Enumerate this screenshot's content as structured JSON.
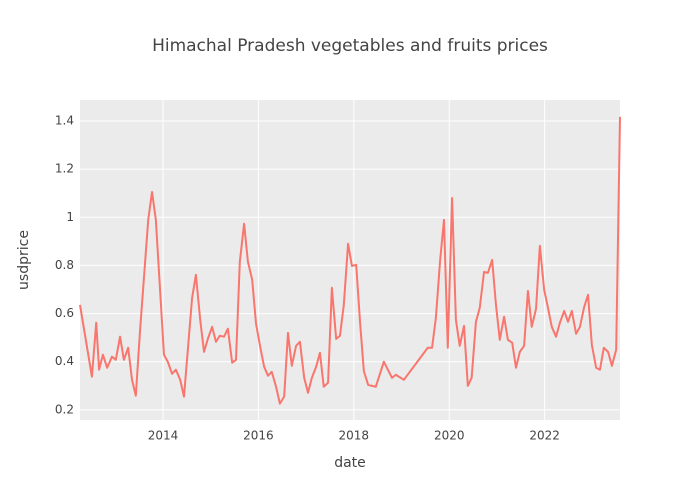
{
  "chart_data": {
    "type": "line",
    "title": "Himachal Pradesh vegetables and fruits prices",
    "x_label": "date",
    "y_label": "usdprice",
    "xlim": [
      2012.26,
      2023.58
    ],
    "xticks": [
      2014,
      2016,
      2018,
      2020,
      2022
    ],
    "ylim": [
      0.158,
      1.487
    ],
    "yticks": [
      0.2,
      0.4,
      0.6,
      0.8,
      1,
      1.2,
      1.4
    ],
    "grid": true,
    "series": [
      {
        "color": "#f8766d",
        "x": [
          2012.26,
          2012.51,
          2012.6,
          2012.66,
          2012.74,
          2012.83,
          2012.93,
          2013.01,
          2013.1,
          2013.18,
          2013.27,
          2013.35,
          2013.43,
          2013.52,
          2013.69,
          2013.77,
          2013.85,
          2014.02,
          2014.1,
          2014.19,
          2014.27,
          2014.36,
          2014.44,
          2014.61,
          2014.69,
          2014.78,
          2014.86,
          2014.94,
          2015.03,
          2015.11,
          2015.19,
          2015.28,
          2015.36,
          2015.45,
          2015.53,
          2015.61,
          2015.7,
          2015.78,
          2015.87,
          2015.95,
          2016.03,
          2016.12,
          2016.2,
          2016.28,
          2016.37,
          2016.45,
          2016.54,
          2016.62,
          2016.7,
          2016.79,
          2016.87,
          2016.96,
          2017.04,
          2017.12,
          2017.21,
          2017.29,
          2017.37,
          2017.46,
          2017.54,
          2017.63,
          2017.71,
          2017.79,
          2017.88,
          2017.96,
          2018.05,
          2018.13,
          2018.21,
          2018.3,
          2018.46,
          2018.63,
          2018.8,
          2018.88,
          2019.05,
          2019.55,
          2019.64,
          2019.72,
          2019.81,
          2019.89,
          2019.97,
          2020.06,
          2020.14,
          2020.22,
          2020.31,
          2020.39,
          2020.47,
          2020.56,
          2020.64,
          2020.73,
          2020.81,
          2020.9,
          2020.98,
          2021.06,
          2021.15,
          2021.23,
          2021.32,
          2021.4,
          2021.48,
          2021.57,
          2021.65,
          2021.73,
          2021.82,
          2021.9,
          2021.99,
          2022.07,
          2022.15,
          2022.24,
          2022.32,
          2022.41,
          2022.49,
          2022.57,
          2022.66,
          2022.74,
          2022.83,
          2022.91,
          2022.99,
          2023.08,
          2023.16,
          2023.24,
          2023.33,
          2023.41,
          2023.5,
          2023.58
        ],
        "values": [
          0.636,
          0.338,
          0.562,
          0.367,
          0.429,
          0.375,
          0.421,
          0.408,
          0.504,
          0.408,
          0.458,
          0.325,
          0.259,
          0.533,
          0.989,
          1.105,
          0.989,
          0.429,
          0.4,
          0.35,
          0.367,
          0.325,
          0.255,
          0.665,
          0.761,
          0.574,
          0.441,
          0.495,
          0.545,
          0.483,
          0.508,
          0.504,
          0.537,
          0.396,
          0.408,
          0.815,
          0.973,
          0.815,
          0.74,
          0.558,
          0.47,
          0.379,
          0.342,
          0.358,
          0.296,
          0.226,
          0.255,
          0.52,
          0.383,
          0.466,
          0.483,
          0.333,
          0.271,
          0.333,
          0.379,
          0.437,
          0.296,
          0.313,
          0.707,
          0.495,
          0.508,
          0.636,
          0.89,
          0.798,
          0.802,
          0.566,
          0.362,
          0.304,
          0.296,
          0.4,
          0.333,
          0.346,
          0.325,
          0.458,
          0.458,
          0.582,
          0.823,
          0.989,
          0.458,
          1.08,
          0.574,
          0.466,
          0.549,
          0.3,
          0.333,
          0.566,
          0.624,
          0.773,
          0.769,
          0.823,
          0.636,
          0.491,
          0.587,
          0.491,
          0.479,
          0.375,
          0.441,
          0.466,
          0.694,
          0.545,
          0.62,
          0.881,
          0.699,
          0.624,
          0.545,
          0.504,
          0.562,
          0.611,
          0.566,
          0.611,
          0.516,
          0.545,
          0.628,
          0.678,
          0.47,
          0.375,
          0.367,
          0.458,
          0.441,
          0.383,
          0.45,
          1.417
        ]
      }
    ]
  }
}
